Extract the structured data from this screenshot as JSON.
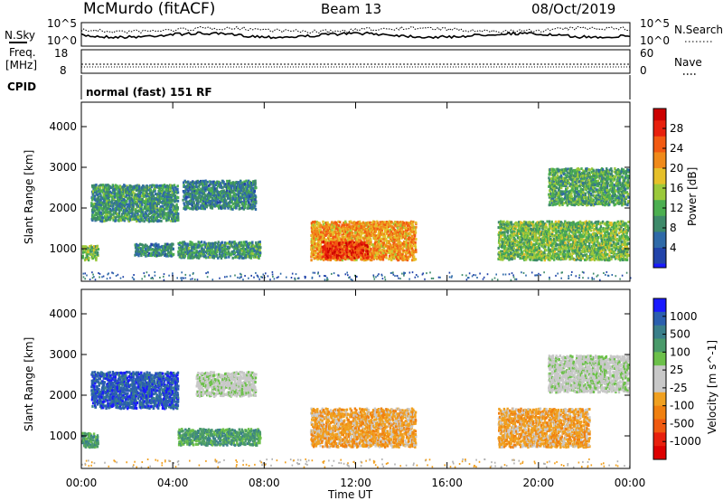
{
  "header": {
    "station": "McMurdo (fitACF)",
    "beam": "Beam 13",
    "date": "08/Oct/2019"
  },
  "top_panels": {
    "nsky_label": "N.Sky",
    "nsearch_label": "N.Search",
    "noise_ticks": [
      "10^5",
      "10^0"
    ],
    "freq_label": "Freq.",
    "freq_unit": "[MHz]",
    "freq_ticks": [
      "18",
      "8"
    ],
    "nave_label": "Nave",
    "nave_ticks": [
      "60",
      "0"
    ],
    "cpid_label": "CPID",
    "cpid_text": "normal (fast) 151 RF"
  },
  "colors": {
    "power_scale": [
      "#1a1aff",
      "#2244aa",
      "#2f6aa8",
      "#3e8a6a",
      "#4caf50",
      "#9bc93b",
      "#e6c02a",
      "#f08a1a",
      "#f25a12",
      "#e8200d",
      "#cc0000"
    ],
    "velocity_scale": [
      "#1a1aff",
      "#2b5fae",
      "#3a7f8a",
      "#4a9a6a",
      "#6cc04a",
      "#c8c8c8",
      "#c8c8c8",
      "#f0a020",
      "#f08010",
      "#f05a10",
      "#e8200d",
      "#dd0000"
    ],
    "ground_scatter": "#b0b0b0"
  },
  "chart_data": [
    {
      "type": "heatmap",
      "name": "power",
      "ylabel": "Slant Range [km]",
      "yticks": [
        1000,
        2000,
        3000,
        4000
      ],
      "ylim": [
        200,
        4600
      ],
      "xlim_hours": [
        0,
        24
      ],
      "colorbar_label": "Power [dB]",
      "colorbar_ticks": [
        4,
        8,
        12,
        16,
        20,
        24,
        28
      ],
      "colorbar_range": [
        0,
        32
      ],
      "echo_regions": [
        {
          "t0": 0.0,
          "t1": 0.7,
          "r0": 750,
          "r1": 1100,
          "level": 14
        },
        {
          "t0": 0.4,
          "t1": 4.2,
          "r0": 1700,
          "r1": 2600,
          "level": 10
        },
        {
          "t0": 2.3,
          "t1": 4.0,
          "r0": 850,
          "r1": 1150,
          "level": 9
        },
        {
          "t0": 4.4,
          "t1": 7.6,
          "r0": 2000,
          "r1": 2700,
          "level": 9
        },
        {
          "t0": 4.2,
          "t1": 7.8,
          "r0": 800,
          "r1": 1200,
          "level": 10
        },
        {
          "t0": 10.0,
          "t1": 14.6,
          "r0": 750,
          "r1": 1700,
          "level": 22
        },
        {
          "t0": 10.5,
          "t1": 12.5,
          "r0": 800,
          "r1": 1200,
          "level": 28
        },
        {
          "t0": 18.2,
          "t1": 23.9,
          "r0": 750,
          "r1": 1700,
          "level": 14
        },
        {
          "t0": 20.4,
          "t1": 23.9,
          "r0": 2100,
          "r1": 3000,
          "level": 12
        }
      ]
    },
    {
      "type": "heatmap",
      "name": "velocity",
      "ylabel": "Slant Range [km]",
      "yticks": [
        1000,
        2000,
        3000,
        4000
      ],
      "ylim": [
        200,
        4600
      ],
      "xlim_hours": [
        0,
        24
      ],
      "xticks": [
        "00:00",
        "04:00",
        "08:00",
        "12:00",
        "16:00",
        "20:00",
        "00:00"
      ],
      "xlabel": "Time UT",
      "colorbar_label": "Velocity [m s^-1]",
      "colorbar_ticks": [
        "1000",
        "500",
        "100",
        "25",
        "-25",
        "-100",
        "-500",
        "-1000"
      ],
      "echo_regions": [
        {
          "t0": 0.0,
          "t1": 0.7,
          "r0": 750,
          "r1": 1100,
          "vel": "100"
        },
        {
          "t0": 0.4,
          "t1": 4.2,
          "r0": 1700,
          "r1": 2600,
          "vel": "500"
        },
        {
          "t0": 4.2,
          "t1": 7.8,
          "r0": 800,
          "r1": 1200,
          "vel": "100"
        },
        {
          "t0": 5.0,
          "t1": 7.6,
          "r0": 2000,
          "r1": 2600,
          "vel": "25"
        },
        {
          "t0": 10.0,
          "t1": 14.6,
          "r0": 750,
          "r1": 1700,
          "vel": "-100"
        },
        {
          "t0": 18.2,
          "t1": 22.2,
          "r0": 750,
          "r1": 1700,
          "vel": "-100"
        },
        {
          "t0": 20.4,
          "t1": 23.9,
          "r0": 2100,
          "r1": 3000,
          "vel": "25"
        }
      ]
    }
  ]
}
